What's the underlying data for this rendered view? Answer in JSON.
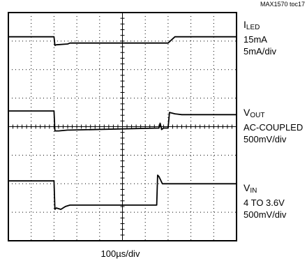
{
  "reference": "MAX1570 toc17",
  "x_scale_label": "100µs/div",
  "labels": {
    "iled": {
      "name_main": "I",
      "name_sub": "LED",
      "line1": "15mA",
      "line2": "5mA/div"
    },
    "vout": {
      "name_main": "V",
      "name_sub": "OUT",
      "line1": "AC-COUPLED",
      "line2": "500mV/div"
    },
    "vin": {
      "name_main": "V",
      "name_sub": "IN",
      "line1": "4 TO 3.6V",
      "line2": "500mV/div"
    }
  },
  "chart_data": {
    "type": "line",
    "title": "",
    "grid": true,
    "x_divisions": 10,
    "y_divisions": 8,
    "x_unit": "div",
    "xlim": [
      0,
      10
    ],
    "ylim": [
      -4,
      4
    ],
    "series": [
      {
        "name": "ILED",
        "x": [
          0,
          2.0,
          2.04,
          2.1,
          2.6,
          2.7,
          7.0,
          7.3,
          10
        ],
        "y": [
          3.15,
          3.15,
          2.85,
          2.87,
          2.9,
          2.93,
          2.93,
          3.15,
          3.15
        ]
      },
      {
        "name": "VOUT",
        "x": [
          0,
          2.0,
          2.04,
          2.2,
          2.6,
          2.7,
          6.6,
          6.65,
          6.72,
          6.8,
          7.0,
          7.06,
          7.3,
          7.6,
          10
        ],
        "y": [
          0.55,
          0.55,
          -0.15,
          -0.15,
          -0.12,
          -0.12,
          -0.05,
          0.12,
          -0.1,
          -0.05,
          -0.05,
          0.5,
          0.45,
          0.42,
          0.42
        ],
        "color": "#000000"
      },
      {
        "name": "VIN",
        "x": [
          0,
          2.0,
          2.04,
          2.1,
          2.3,
          2.5,
          2.7,
          6.5,
          6.54,
          6.6,
          6.75,
          6.9,
          10
        ],
        "y": [
          -1.9,
          -1.9,
          -2.9,
          -2.85,
          -2.9,
          -2.8,
          -2.75,
          -2.75,
          -1.7,
          -1.75,
          -2.0,
          -2.0,
          -2.0
        ]
      }
    ]
  }
}
